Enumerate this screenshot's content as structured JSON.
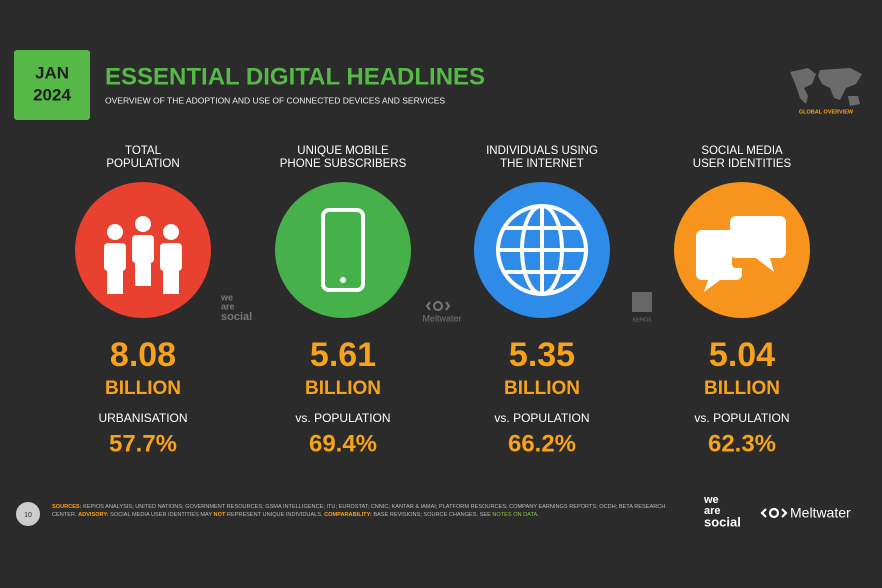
{
  "header": {
    "month": "JAN",
    "year": "2024",
    "title": "ESSENTIAL DIGITAL HEADLINES",
    "subtitle": "OVERVIEW OF THE ADOPTION AND USE OF CONNECTED DEVICES AND SERVICES",
    "badge": "GLOBAL OVERVIEW"
  },
  "cards": [
    {
      "label": [
        "TOTAL",
        "POPULATION"
      ],
      "value": "8.08",
      "unit": "BILLION",
      "sub_label": "URBANISATION",
      "sub_value": "57.7%"
    },
    {
      "label": [
        "UNIQUE MOBILE",
        "PHONE SUBSCRIBERS"
      ],
      "value": "5.61",
      "unit": "BILLION",
      "sub_label": "vs. POPULATION",
      "sub_value": "69.4%"
    },
    {
      "label": [
        "INDIVIDUALS USING",
        "THE INTERNET"
      ],
      "value": "5.35",
      "unit": "BILLION",
      "sub_label": "vs. POPULATION",
      "sub_value": "66.2%"
    },
    {
      "label": [
        "SOCIAL MEDIA",
        "USER IDENTITIES"
      ],
      "value": "5.04",
      "unit": "BILLION",
      "sub_label": "vs. POPULATION",
      "sub_value": "62.3%"
    }
  ],
  "watermarks": {
    "we_are_social": [
      "we",
      "are",
      "social"
    ],
    "meltwater": "Meltwater",
    "kepios": "KEPIOS"
  },
  "footer": {
    "page": "10",
    "sources": [
      {
        "text": "SOURCES:",
        "style": "label"
      },
      {
        "text": " KEPIOS ANALYSIS; UNITED NATIONS; GOVERNMENT RESOURCES; GSMA INTELLIGENCE; ITU; EUROSTAT; CNNIC; KANTAR & IAMAI; PLATFORM RESOURCES; COMPANY EARNINGS REPORTS; OCDH; BETA RESEARCH CENTER. ",
        "style": "plain"
      },
      {
        "text": "ADVISORY:",
        "style": "label"
      },
      {
        "text": " SOCIAL MEDIA USER IDENTITIES MAY ",
        "style": "plain"
      },
      {
        "text": "NOT",
        "style": "label"
      },
      {
        "text": " REPRESENT UNIQUE INDIVIDUALS. ",
        "style": "plain"
      },
      {
        "text": "COMPARABILITY:",
        "style": "label"
      },
      {
        "text": " BASE REVISIONS; SOURCE CHANGES. SEE ",
        "style": "plain"
      },
      {
        "text": "NOTES ON DATA",
        "style": "link"
      },
      {
        "text": ".",
        "style": "plain"
      }
    ],
    "logo_was": [
      "we",
      "are",
      "social"
    ],
    "logo_meltwater": "Meltwater"
  }
}
